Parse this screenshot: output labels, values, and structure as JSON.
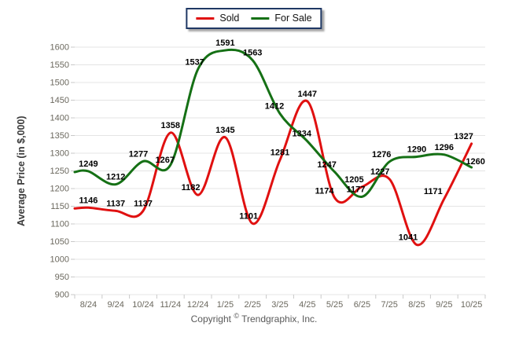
{
  "chart_data": {
    "type": "line",
    "title": "",
    "xlabel": "",
    "ylabel": "Average Price (in $,000)",
    "categories": [
      "8/24",
      "9/24",
      "10/24",
      "11/24",
      "12/24",
      "1/25",
      "2/25",
      "3/25",
      "4/25",
      "5/25",
      "6/25",
      "7/25",
      "8/25",
      "9/25",
      "10/25"
    ],
    "series": [
      {
        "name": "Sold",
        "color": "#e01010",
        "values": [
          1146,
          1137,
          1137,
          1358,
          1182,
          1345,
          1101,
          1281,
          1447,
          1174,
          1205,
          1227,
          1041,
          1171,
          1327
        ]
      },
      {
        "name": "For Sale",
        "color": "#157015",
        "values": [
          1249,
          1212,
          1277,
          1267,
          1537,
          1591,
          1563,
          1412,
          1334,
          1247,
          1177,
          1276,
          1290,
          1296,
          1260
        ]
      }
    ],
    "y_axis": {
      "min": 900,
      "max": 1600,
      "step": 50
    },
    "grid": true,
    "smooth": true,
    "legend_position": "top-center"
  },
  "colors": {
    "gridline": "#e4e4e4",
    "tick": "#c9c9c9",
    "axis_text": "#6b685e",
    "data_label": "#000000",
    "legend_border": "#1f3864"
  },
  "footer": {
    "copyright_prefix": "Copyright",
    "copyright_symbol": "©",
    "copyright_suffix": "Trendgraphix, Inc."
  }
}
